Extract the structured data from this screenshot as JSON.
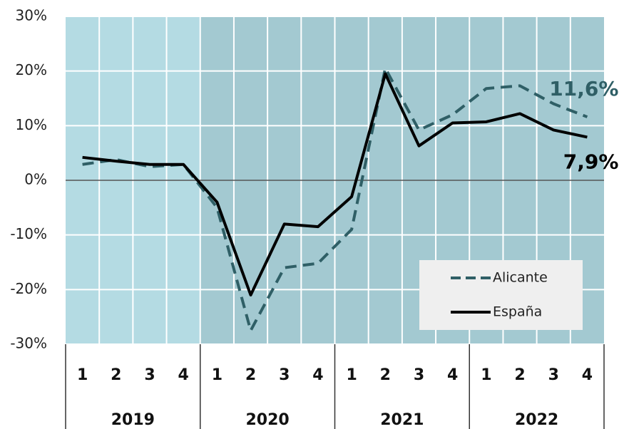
{
  "chart_data": {
    "type": "line",
    "categories": [
      "1",
      "2",
      "3",
      "4",
      "1",
      "2",
      "3",
      "4",
      "1",
      "2",
      "3",
      "4",
      "1",
      "2",
      "3",
      "4"
    ],
    "years": [
      "2019",
      "2020",
      "2021",
      "2022"
    ],
    "year_colors": [
      "#b4dbe3",
      "#a3c9d1",
      "#a3c9d1",
      "#a3c9d1"
    ],
    "series": [
      {
        "name": "Alicante",
        "color": "#2f5f66",
        "style": "dashed",
        "values": [
          2.9,
          3.8,
          2.5,
          2.9,
          -5,
          -27.5,
          -16,
          -15.2,
          -9,
          20.5,
          9.2,
          12,
          16.8,
          17.3,
          14,
          11.6
        ],
        "value_labels": [
          null,
          null,
          null,
          null,
          null,
          null,
          null,
          null,
          null,
          null,
          null,
          null,
          null,
          null,
          null,
          "11,6%"
        ]
      },
      {
        "name": "España",
        "color": "#000000",
        "style": "solid",
        "values": [
          4.2,
          3.5,
          2.9,
          2.9,
          -4,
          -21,
          -8,
          -8.5,
          -3,
          19.5,
          6.3,
          10.5,
          10.7,
          12.2,
          9.2,
          7.9
        ],
        "value_labels": [
          null,
          null,
          null,
          null,
          null,
          null,
          null,
          null,
          null,
          null,
          null,
          null,
          null,
          null,
          null,
          "7,9%"
        ]
      }
    ],
    "ylim": [
      -30,
      30
    ],
    "yticks": [
      {
        "value": -30,
        "label": "-30%"
      },
      {
        "value": -20,
        "label": "-20%"
      },
      {
        "value": -10,
        "label": "-10%"
      },
      {
        "value": 0,
        "label": "0%"
      },
      {
        "value": 10,
        "label": "10%"
      },
      {
        "value": 20,
        "label": "20%"
      },
      {
        "value": 30,
        "label": "30%"
      }
    ],
    "grid": true,
    "legend": "lower right"
  }
}
